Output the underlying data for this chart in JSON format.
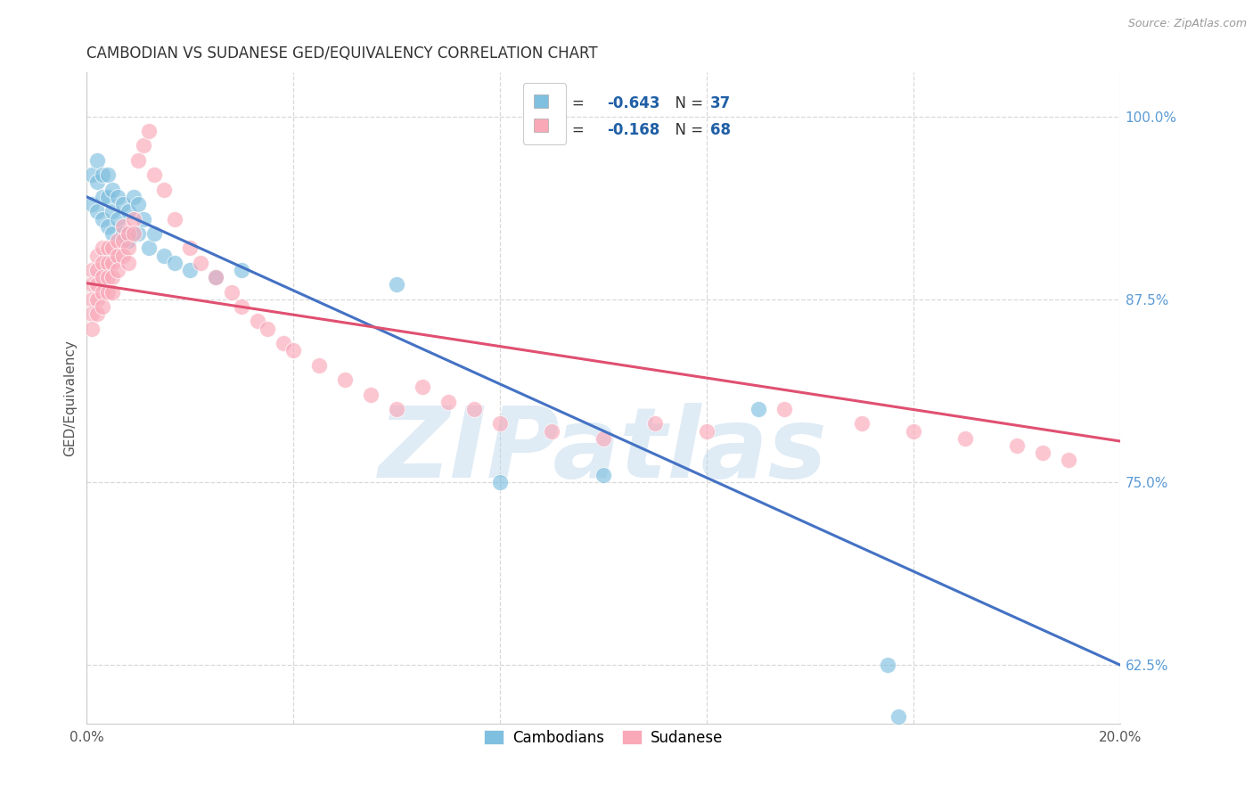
{
  "title": "CAMBODIAN VS SUDANESE GED/EQUIVALENCY CORRELATION CHART",
  "source": "Source: ZipAtlas.com",
  "ylabel": "GED/Equivalency",
  "xlim": [
    0.0,
    0.2
  ],
  "ylim": [
    0.585,
    1.03
  ],
  "xticks": [
    0.0,
    0.04,
    0.08,
    0.12,
    0.16,
    0.2
  ],
  "xticklabels": [
    "0.0%",
    "",
    "",
    "",
    "",
    "20.0%"
  ],
  "yticks_right": [
    0.625,
    0.75,
    0.875,
    1.0
  ],
  "ytick_labels_right": [
    "62.5%",
    "75.0%",
    "87.5%",
    "100.0%"
  ],
  "blue_color": "#7fbfdf",
  "pink_color": "#f9a8b8",
  "trend_blue": "#4472c4",
  "trend_pink": "#e05070",
  "watermark": "ZIPatlas",
  "cambodian_label": "Cambodians",
  "sudanese_label": "Sudanese",
  "blue_scatter_x": [
    0.001,
    0.001,
    0.002,
    0.002,
    0.002,
    0.003,
    0.003,
    0.003,
    0.004,
    0.004,
    0.004,
    0.005,
    0.005,
    0.005,
    0.006,
    0.006,
    0.007,
    0.007,
    0.008,
    0.008,
    0.009,
    0.01,
    0.01,
    0.011,
    0.012,
    0.013,
    0.015,
    0.017,
    0.02,
    0.025,
    0.03,
    0.06,
    0.08,
    0.1,
    0.13,
    0.155,
    0.157
  ],
  "blue_scatter_y": [
    0.96,
    0.94,
    0.97,
    0.955,
    0.935,
    0.96,
    0.945,
    0.93,
    0.96,
    0.945,
    0.925,
    0.95,
    0.935,
    0.92,
    0.945,
    0.93,
    0.94,
    0.92,
    0.935,
    0.915,
    0.945,
    0.94,
    0.92,
    0.93,
    0.91,
    0.92,
    0.905,
    0.9,
    0.895,
    0.89,
    0.895,
    0.885,
    0.75,
    0.755,
    0.8,
    0.625,
    0.59
  ],
  "pink_scatter_x": [
    0.001,
    0.001,
    0.001,
    0.001,
    0.001,
    0.002,
    0.002,
    0.002,
    0.002,
    0.002,
    0.003,
    0.003,
    0.003,
    0.003,
    0.003,
    0.004,
    0.004,
    0.004,
    0.004,
    0.005,
    0.005,
    0.005,
    0.005,
    0.006,
    0.006,
    0.006,
    0.007,
    0.007,
    0.007,
    0.008,
    0.008,
    0.008,
    0.009,
    0.009,
    0.01,
    0.011,
    0.012,
    0.013,
    0.015,
    0.017,
    0.02,
    0.022,
    0.025,
    0.028,
    0.03,
    0.033,
    0.035,
    0.038,
    0.04,
    0.045,
    0.05,
    0.055,
    0.06,
    0.065,
    0.07,
    0.075,
    0.08,
    0.09,
    0.1,
    0.11,
    0.12,
    0.135,
    0.15,
    0.16,
    0.17,
    0.18,
    0.185,
    0.19
  ],
  "pink_scatter_y": [
    0.895,
    0.885,
    0.875,
    0.865,
    0.855,
    0.905,
    0.895,
    0.885,
    0.875,
    0.865,
    0.91,
    0.9,
    0.89,
    0.88,
    0.87,
    0.91,
    0.9,
    0.89,
    0.88,
    0.91,
    0.9,
    0.89,
    0.88,
    0.915,
    0.905,
    0.895,
    0.925,
    0.915,
    0.905,
    0.92,
    0.91,
    0.9,
    0.93,
    0.92,
    0.97,
    0.98,
    0.99,
    0.96,
    0.95,
    0.93,
    0.91,
    0.9,
    0.89,
    0.88,
    0.87,
    0.86,
    0.855,
    0.845,
    0.84,
    0.83,
    0.82,
    0.81,
    0.8,
    0.815,
    0.805,
    0.8,
    0.79,
    0.785,
    0.78,
    0.79,
    0.785,
    0.8,
    0.79,
    0.785,
    0.78,
    0.775,
    0.77,
    0.765
  ],
  "blue_line_x": [
    0.0,
    0.2
  ],
  "blue_line_y": [
    0.945,
    0.625
  ],
  "pink_line_x": [
    0.0,
    0.2
  ],
  "pink_line_y": [
    0.886,
    0.778
  ],
  "grid_color": "#d8d8d8",
  "background_color": "#ffffff",
  "title_fontsize": 12,
  "label_fontsize": 10
}
